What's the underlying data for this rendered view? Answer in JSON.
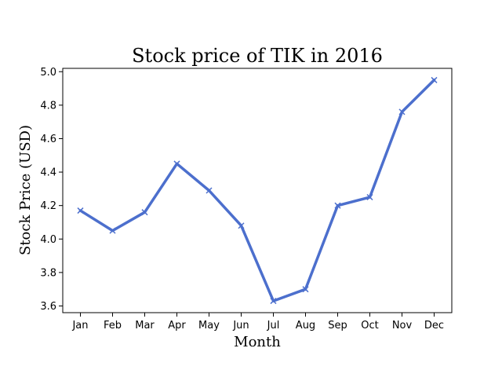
{
  "chart_data": {
    "type": "line",
    "title": "Stock price of TIK in 2016",
    "xlabel": "Month",
    "ylabel": "Stock Price (USD)",
    "categories": [
      "Jan",
      "Feb",
      "Mar",
      "Apr",
      "May",
      "Jun",
      "Jul",
      "Aug",
      "Sep",
      "Oct",
      "Nov",
      "Dec"
    ],
    "series": [
      {
        "values": [
          4.17,
          4.05,
          4.16,
          4.45,
          4.29,
          4.08,
          3.63,
          3.7,
          4.2,
          4.25,
          4.76,
          4.95
        ],
        "color": "#4c6fcd",
        "marker": "x"
      }
    ],
    "ylim": [
      3.56,
      5.02
    ],
    "yticks": [
      "3.6",
      "3.8",
      "4.0",
      "4.2",
      "4.4",
      "4.6",
      "4.8",
      "5.0"
    ],
    "grid": false
  }
}
